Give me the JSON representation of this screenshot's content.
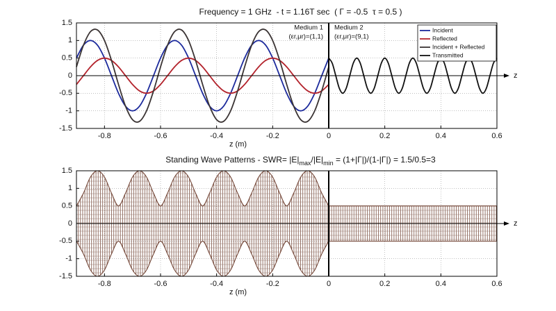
{
  "chart_data": [
    {
      "type": "line",
      "title": "Frequency = 1 GHz  - t = 1.16T sec  ( Γ = -0.5  τ = 0.5 )",
      "xlabel": "z (m)",
      "axis_label": "z",
      "annotations": [
        "Medium 1",
        "(εr,μr)=(1,1)",
        "Medium 2",
        "(εr,μr)=(9,1)"
      ],
      "xlim": [
        -0.9,
        0.6
      ],
      "xticks": [
        -0.8,
        -0.6,
        -0.4,
        -0.2,
        0,
        0.2,
        0.4,
        0.6
      ],
      "ylim": [
        -1.5,
        1.5
      ],
      "yticks": [
        -1.5,
        -1,
        -0.5,
        0,
        0.5,
        1,
        1.5
      ],
      "grid": true,
      "legend": "upper right",
      "boundary_x": 0,
      "series": [
        {
          "name": "Incident",
          "color": "#1c2a9c",
          "x": [
            -0.9,
            -0.875,
            -0.85,
            -0.825,
            -0.8,
            -0.775,
            -0.75,
            -0.725,
            -0.7,
            -0.675,
            -0.65,
            -0.625,
            -0.6,
            -0.575,
            -0.55,
            -0.525,
            -0.5,
            -0.475,
            -0.45,
            -0.425,
            -0.4,
            -0.375,
            -0.35,
            -0.325,
            -0.3,
            -0.275,
            -0.25,
            -0.225,
            -0.2,
            -0.175,
            -0.15,
            -0.125,
            -0.1,
            -0.075,
            -0.05,
            -0.025,
            0
          ],
          "values": [
            0.5,
            0.866,
            1,
            0.866,
            0.5,
            0,
            -0.5,
            -0.866,
            -1,
            -0.866,
            -0.5,
            0,
            0.5,
            0.866,
            1,
            0.866,
            0.5,
            0,
            -0.5,
            -0.866,
            -1,
            -0.866,
            -0.5,
            0,
            0.5,
            0.866,
            1,
            0.866,
            0.5,
            0,
            -0.5,
            -0.866,
            -1,
            -0.866,
            -0.5,
            0,
            0.5
          ]
        },
        {
          "name": "Reflected",
          "color": "#b3232c",
          "x": [
            -0.9,
            -0.875,
            -0.85,
            -0.825,
            -0.8,
            -0.775,
            -0.75,
            -0.725,
            -0.7,
            -0.675,
            -0.65,
            -0.625,
            -0.6,
            -0.575,
            -0.55,
            -0.525,
            -0.5,
            -0.475,
            -0.45,
            -0.425,
            -0.4,
            -0.375,
            -0.35,
            -0.325,
            -0.3,
            -0.275,
            -0.25,
            -0.225,
            -0.2,
            -0.175,
            -0.15,
            -0.125,
            -0.1,
            -0.075,
            -0.05,
            -0.025,
            0
          ],
          "values": [
            -0.25,
            0,
            0.25,
            0.433,
            0.5,
            0.433,
            0.25,
            0,
            -0.25,
            -0.433,
            -0.5,
            -0.433,
            -0.25,
            0,
            0.25,
            0.433,
            0.5,
            0.433,
            0.25,
            0,
            -0.25,
            -0.433,
            -0.5,
            -0.433,
            -0.25,
            0,
            0.25,
            0.433,
            0.5,
            0.433,
            0.25,
            0,
            -0.25,
            -0.433,
            -0.5,
            -0.433,
            -0.25
          ]
        },
        {
          "name": "Incident + Reflected",
          "color": "#3b3434",
          "x": [
            -0.9,
            -0.875,
            -0.85,
            -0.825,
            -0.8,
            -0.775,
            -0.75,
            -0.725,
            -0.7,
            -0.675,
            -0.65,
            -0.625,
            -0.6,
            -0.575,
            -0.55,
            -0.525,
            -0.5,
            -0.475,
            -0.45,
            -0.425,
            -0.4,
            -0.375,
            -0.35,
            -0.325,
            -0.3,
            -0.275,
            -0.25,
            -0.225,
            -0.2,
            -0.175,
            -0.15,
            -0.125,
            -0.1,
            -0.075,
            -0.05,
            -0.025,
            0
          ],
          "values": [
            0.25,
            0.866,
            1.25,
            1.299,
            1,
            0.433,
            -0.25,
            -0.866,
            -1.25,
            -1.299,
            -1,
            -0.433,
            0.25,
            0.866,
            1.25,
            1.299,
            1,
            0.433,
            -0.25,
            -0.866,
            -1.25,
            -1.299,
            -1,
            -0.433,
            0.25,
            0.866,
            1.25,
            1.299,
            1,
            0.433,
            -0.25,
            -0.866,
            -1.25,
            -1.299,
            -1,
            -0.433,
            0.25
          ]
        },
        {
          "name": "Transmitted",
          "color": "#111111",
          "x": [
            0,
            0.0125,
            0.025,
            0.0375,
            0.05,
            0.0625,
            0.075,
            0.0875,
            0.1,
            0.1125,
            0.125,
            0.1375,
            0.15,
            0.1625,
            0.175,
            0.1875,
            0.2,
            0.2125,
            0.225,
            0.2375,
            0.25,
            0.2625,
            0.275,
            0.2875,
            0.3,
            0.3125,
            0.325,
            0.3375,
            0.35,
            0.3625,
            0.375,
            0.3875,
            0.4,
            0.4125,
            0.425,
            0.4375,
            0.45,
            0.4625,
            0.475,
            0.4875,
            0.5,
            0.5125,
            0.525,
            0.5375,
            0.55,
            0.5625,
            0.575,
            0.5875,
            0.6
          ],
          "values": [
            0.5,
            0.354,
            0,
            -0.354,
            -0.5,
            -0.354,
            0,
            0.354,
            0.5,
            0.354,
            0,
            -0.354,
            -0.5,
            -0.354,
            0,
            0.354,
            0.5,
            0.354,
            0,
            -0.354,
            -0.5,
            -0.354,
            0,
            0.354,
            0.5,
            0.354,
            0,
            -0.354,
            -0.5,
            -0.354,
            0,
            0.354,
            0.5,
            0.354,
            0,
            -0.354,
            -0.5,
            -0.354,
            0,
            0.354,
            0.5,
            0.354,
            0,
            -0.354,
            -0.5,
            -0.354,
            0,
            0.354,
            0.5
          ]
        }
      ]
    },
    {
      "type": "area",
      "title": [
        {
          "text": "Standing Wave Patterns - SWR= |E|"
        },
        {
          "text": "max",
          "sub": true
        },
        {
          "text": "/|E|"
        },
        {
          "text": "min",
          "sub": true
        },
        {
          "text": " = (1+|Γ|)/(1-|Γ|) = 1.5/0.5=3"
        }
      ],
      "xlabel": "z (m)",
      "axis_label": "z",
      "xlim": [
        -0.9,
        0.6
      ],
      "xticks": [
        -0.8,
        -0.6,
        -0.4,
        -0.2,
        0,
        0.2,
        0.4,
        0.6
      ],
      "ylim": [
        -1.5,
        1.5
      ],
      "yticks": [
        -1.5,
        -1,
        -0.5,
        0,
        0.5,
        1,
        1.5
      ],
      "grid": true,
      "boundary_x": 0,
      "series": [
        {
          "color": "#6b3b2b",
          "x": [
            -0.9,
            -0.875,
            -0.85,
            -0.825,
            -0.8,
            -0.775,
            -0.75,
            -0.725,
            -0.7,
            -0.675,
            -0.65,
            -0.625,
            -0.6,
            -0.575,
            -0.55,
            -0.525,
            -0.5,
            -0.475,
            -0.45,
            -0.425,
            -0.4,
            -0.375,
            -0.35,
            -0.325,
            -0.3,
            -0.275,
            -0.25,
            -0.225,
            -0.2,
            -0.175,
            -0.15,
            -0.125,
            -0.1,
            -0.075,
            -0.05,
            -0.025,
            0
          ],
          "values": [
            0.5,
            0.866,
            1.323,
            1.5,
            1.323,
            0.866,
            0.5,
            0.866,
            1.323,
            1.5,
            1.323,
            0.866,
            0.5,
            0.866,
            1.323,
            1.5,
            1.323,
            0.866,
            0.5,
            0.866,
            1.323,
            1.5,
            1.323,
            0.866,
            0.5,
            0.866,
            1.323,
            1.5,
            1.323,
            0.866,
            0.5,
            0.866,
            1.323,
            1.5,
            1.323,
            0.866,
            0.5
          ]
        },
        {
          "color": "#6b3b2b",
          "x": [
            -0.9,
            -0.875,
            -0.85,
            -0.825,
            -0.8,
            -0.775,
            -0.75,
            -0.725,
            -0.7,
            -0.675,
            -0.65,
            -0.625,
            -0.6,
            -0.575,
            -0.55,
            -0.525,
            -0.5,
            -0.475,
            -0.45,
            -0.425,
            -0.4,
            -0.375,
            -0.35,
            -0.325,
            -0.3,
            -0.275,
            -0.25,
            -0.225,
            -0.2,
            -0.175,
            -0.15,
            -0.125,
            -0.1,
            -0.075,
            -0.05,
            -0.025,
            0
          ],
          "values": [
            -0.5,
            -0.866,
            -1.323,
            -1.5,
            -1.323,
            -0.866,
            -0.5,
            -0.866,
            -1.323,
            -1.5,
            -1.323,
            -0.866,
            -0.5,
            -0.866,
            -1.323,
            -1.5,
            -1.323,
            -0.866,
            -0.5,
            -0.866,
            -1.323,
            -1.5,
            -1.323,
            -0.866,
            -0.5,
            -0.866,
            -1.323,
            -1.5,
            -1.323,
            -0.866,
            -0.5,
            -0.866,
            -1.323,
            -1.5,
            -1.323,
            -0.866,
            -0.5
          ]
        },
        {
          "color": "#6b3b2b",
          "x": [
            0,
            0.6
          ],
          "values": [
            0.5,
            0.5
          ]
        },
        {
          "color": "#6b3b2b",
          "x": [
            0,
            0.6
          ],
          "values": [
            -0.5,
            -0.5
          ]
        }
      ]
    }
  ]
}
